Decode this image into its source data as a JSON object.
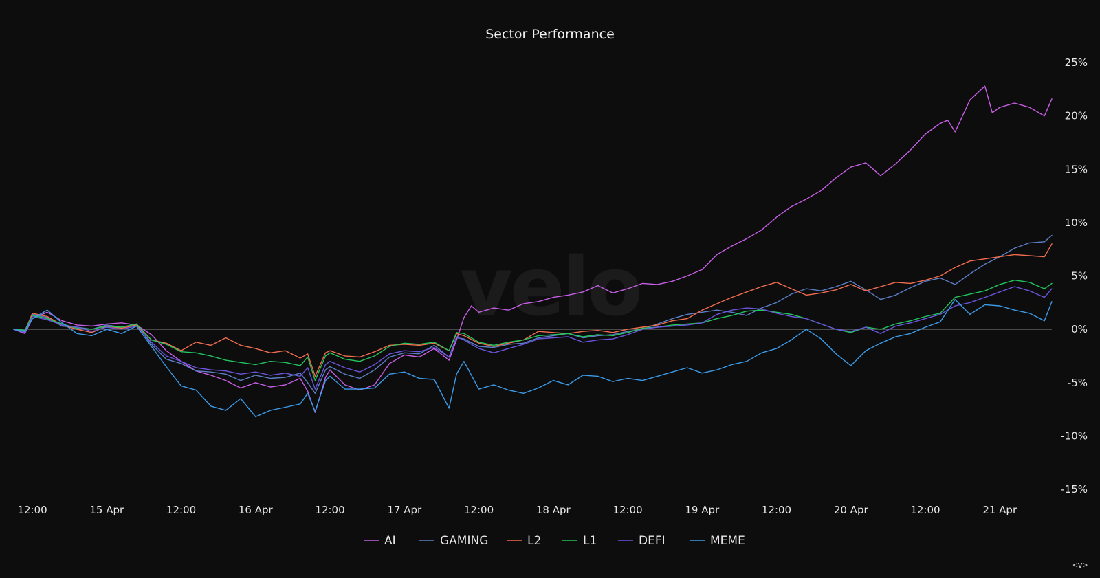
{
  "chart_data": {
    "type": "line",
    "title": "Sector Performance",
    "watermark": "velo",
    "y_tick_labels": [
      "25%",
      "20%",
      "15%",
      "10%",
      "5%",
      "0%",
      "-5%",
      "-10%",
      "-15%"
    ],
    "y_ticks": [
      25,
      20,
      15,
      10,
      5,
      0,
      -5,
      -10,
      -15
    ],
    "ylim": [
      -15,
      25
    ],
    "x_tick_labels": [
      "12:00",
      "15 Apr",
      "12:00",
      "16 Apr",
      "12:00",
      "17 Apr",
      "12:00",
      "18 Apr",
      "12:00",
      "19 Apr",
      "12:00",
      "20 Apr",
      "12:00",
      "21 Apr"
    ],
    "x_ticks": [
      0.5,
      1.0,
      1.5,
      2.0,
      2.5,
      3.0,
      3.5,
      4.0,
      4.5,
      5.0,
      5.5,
      6.0,
      6.5,
      7.0
    ],
    "xlim": [
      0.375,
      7.35
    ],
    "zero_line": true,
    "legend_position": "bottom-center",
    "corner_label": "<v>",
    "series": [
      {
        "name": "AI",
        "color": "#c85fe6",
        "x": [
          0.375,
          0.45,
          0.5,
          0.6,
          0.7,
          0.8,
          0.9,
          1.0,
          1.1,
          1.2,
          1.3,
          1.4,
          1.5,
          1.6,
          1.7,
          1.8,
          1.9,
          2.0,
          2.1,
          2.2,
          2.3,
          2.35,
          2.4,
          2.47,
          2.5,
          2.6,
          2.7,
          2.8,
          2.9,
          3.0,
          3.1,
          3.2,
          3.3,
          3.35,
          3.4,
          3.45,
          3.5,
          3.6,
          3.7,
          3.8,
          3.9,
          4.0,
          4.1,
          4.2,
          4.3,
          4.4,
          4.5,
          4.6,
          4.7,
          4.8,
          4.9,
          5.0,
          5.1,
          5.2,
          5.3,
          5.4,
          5.5,
          5.6,
          5.7,
          5.8,
          5.9,
          6.0,
          6.1,
          6.2,
          6.3,
          6.4,
          6.5,
          6.6,
          6.65,
          6.7,
          6.8,
          6.9,
          6.95,
          7.0,
          7.1,
          7.2,
          7.3,
          7.35
        ],
        "y": [
          0.0,
          -0.4,
          1.0,
          1.6,
          0.8,
          0.4,
          0.3,
          0.5,
          0.6,
          0.4,
          -0.5,
          -2.0,
          -3.0,
          -3.9,
          -4.3,
          -4.8,
          -5.5,
          -5.0,
          -5.4,
          -5.2,
          -4.6,
          -5.8,
          -7.8,
          -4.5,
          -3.8,
          -5.2,
          -5.7,
          -5.2,
          -3.2,
          -2.4,
          -2.6,
          -1.8,
          -2.9,
          -1.0,
          1.1,
          2.2,
          1.6,
          2.0,
          1.8,
          2.4,
          2.6,
          3.0,
          3.2,
          3.5,
          4.1,
          3.4,
          3.8,
          4.3,
          4.2,
          4.5,
          5.0,
          5.6,
          7.0,
          7.8,
          8.5,
          9.3,
          10.5,
          11.5,
          12.2,
          13.0,
          14.2,
          15.2,
          15.6,
          14.4,
          15.5,
          16.8,
          18.3,
          19.3,
          19.6,
          18.5,
          21.5,
          22.8,
          20.3,
          20.8,
          21.2,
          20.8,
          20.0,
          21.6
        ]
      },
      {
        "name": "GAMING",
        "color": "#5b7fc6",
        "x": [
          0.375,
          0.45,
          0.5,
          0.6,
          0.7,
          0.8,
          0.9,
          1.0,
          1.1,
          1.2,
          1.3,
          1.4,
          1.5,
          1.6,
          1.7,
          1.8,
          1.9,
          2.0,
          2.1,
          2.2,
          2.3,
          2.35,
          2.4,
          2.47,
          2.5,
          2.6,
          2.7,
          2.8,
          2.9,
          3.0,
          3.1,
          3.2,
          3.3,
          3.35,
          3.4,
          3.5,
          3.6,
          3.7,
          3.8,
          3.9,
          4.0,
          4.1,
          4.2,
          4.3,
          4.4,
          4.5,
          4.6,
          4.7,
          4.8,
          4.9,
          5.0,
          5.1,
          5.2,
          5.3,
          5.4,
          5.5,
          5.6,
          5.7,
          5.8,
          5.9,
          6.0,
          6.1,
          6.2,
          6.3,
          6.4,
          6.5,
          6.6,
          6.7,
          6.8,
          6.9,
          7.0,
          7.1,
          7.2,
          7.3,
          7.35
        ],
        "y": [
          0.0,
          -0.2,
          1.4,
          1.1,
          0.3,
          0.2,
          0.0,
          0.4,
          0.2,
          0.5,
          -1.4,
          -2.8,
          -3.2,
          -3.9,
          -4.0,
          -4.2,
          -4.8,
          -4.3,
          -4.6,
          -4.5,
          -4.1,
          -5.0,
          -6.0,
          -3.8,
          -3.5,
          -4.2,
          -4.6,
          -3.8,
          -2.6,
          -2.2,
          -2.3,
          -1.5,
          -2.6,
          -0.8,
          -0.9,
          -1.6,
          -1.7,
          -1.4,
          -1.3,
          -0.8,
          -0.6,
          -0.4,
          -0.8,
          -0.6,
          -0.5,
          -0.2,
          0.0,
          0.5,
          1.0,
          1.4,
          1.6,
          1.8,
          1.6,
          1.3,
          2.0,
          2.5,
          3.3,
          3.8,
          3.6,
          4.0,
          4.5,
          3.7,
          2.8,
          3.2,
          3.9,
          4.5,
          4.8,
          4.2,
          5.2,
          6.1,
          6.8,
          7.6,
          8.1,
          8.2,
          8.8
        ]
      },
      {
        "name": "L2",
        "color": "#f26d4f",
        "x": [
          0.375,
          0.45,
          0.5,
          0.6,
          0.7,
          0.8,
          0.9,
          1.0,
          1.1,
          1.2,
          1.3,
          1.4,
          1.5,
          1.6,
          1.7,
          1.8,
          1.9,
          2.0,
          2.1,
          2.2,
          2.3,
          2.35,
          2.4,
          2.47,
          2.5,
          2.6,
          2.7,
          2.8,
          2.9,
          3.0,
          3.1,
          3.2,
          3.3,
          3.35,
          3.4,
          3.5,
          3.6,
          3.7,
          3.8,
          3.9,
          4.0,
          4.1,
          4.2,
          4.3,
          4.4,
          4.5,
          4.6,
          4.7,
          4.8,
          4.9,
          5.0,
          5.1,
          5.2,
          5.3,
          5.4,
          5.5,
          5.6,
          5.7,
          5.8,
          5.9,
          6.0,
          6.1,
          6.2,
          6.3,
          6.4,
          6.5,
          6.6,
          6.7,
          6.8,
          6.9,
          7.0,
          7.1,
          7.2,
          7.3,
          7.35
        ],
        "y": [
          0.0,
          -0.2,
          1.5,
          1.2,
          0.4,
          0.0,
          -0.3,
          0.3,
          0.1,
          0.4,
          -1.0,
          -1.3,
          -2.0,
          -1.2,
          -1.5,
          -0.8,
          -1.5,
          -1.8,
          -2.2,
          -2.0,
          -2.7,
          -2.3,
          -4.4,
          -2.2,
          -2.0,
          -2.5,
          -2.6,
          -2.1,
          -1.5,
          -1.4,
          -1.5,
          -1.3,
          -2.0,
          -0.4,
          -0.6,
          -1.3,
          -1.6,
          -1.3,
          -1.0,
          -0.2,
          -0.3,
          -0.4,
          -0.2,
          -0.1,
          -0.3,
          0.0,
          0.2,
          0.4,
          0.8,
          1.0,
          1.8,
          2.4,
          3.0,
          3.5,
          4.0,
          4.4,
          3.8,
          3.2,
          3.4,
          3.7,
          4.2,
          3.6,
          4.0,
          4.4,
          4.3,
          4.6,
          5.0,
          5.8,
          6.4,
          6.6,
          6.8,
          7.0,
          6.9,
          6.8,
          8.0
        ]
      },
      {
        "name": "L1",
        "color": "#22c55e",
        "x": [
          0.375,
          0.45,
          0.5,
          0.6,
          0.7,
          0.8,
          0.9,
          1.0,
          1.1,
          1.2,
          1.3,
          1.4,
          1.5,
          1.6,
          1.7,
          1.8,
          1.9,
          2.0,
          2.1,
          2.2,
          2.3,
          2.35,
          2.4,
          2.47,
          2.5,
          2.6,
          2.7,
          2.8,
          2.9,
          3.0,
          3.1,
          3.2,
          3.3,
          3.35,
          3.4,
          3.5,
          3.6,
          3.7,
          3.8,
          3.9,
          4.0,
          4.1,
          4.2,
          4.3,
          4.4,
          4.5,
          4.6,
          4.7,
          4.8,
          4.9,
          5.0,
          5.1,
          5.2,
          5.3,
          5.4,
          5.5,
          5.6,
          5.7,
          5.8,
          5.9,
          6.0,
          6.1,
          6.2,
          6.3,
          6.4,
          6.5,
          6.6,
          6.7,
          6.8,
          6.9,
          7.0,
          7.1,
          7.2,
          7.3,
          7.35
        ],
        "y": [
          0.0,
          -0.1,
          1.3,
          1.0,
          0.5,
          0.1,
          0.0,
          0.3,
          0.2,
          0.5,
          -1.0,
          -1.4,
          -2.1,
          -2.2,
          -2.5,
          -2.9,
          -3.1,
          -3.3,
          -3.0,
          -3.1,
          -3.4,
          -2.6,
          -4.8,
          -2.5,
          -2.2,
          -2.8,
          -3.0,
          -2.5,
          -1.6,
          -1.3,
          -1.4,
          -1.2,
          -2.0,
          -0.3,
          -0.4,
          -1.2,
          -1.5,
          -1.2,
          -1.0,
          -0.6,
          -0.5,
          -0.4,
          -0.7,
          -0.5,
          -0.6,
          -0.3,
          0.1,
          0.2,
          0.4,
          0.5,
          0.6,
          1.0,
          1.3,
          1.7,
          1.8,
          1.6,
          1.4,
          1.0,
          0.5,
          0.0,
          -0.3,
          0.2,
          0.0,
          0.5,
          0.8,
          1.2,
          1.5,
          3.0,
          3.3,
          3.6,
          4.2,
          4.6,
          4.4,
          3.8,
          4.3
        ]
      },
      {
        "name": "DEFI",
        "color": "#6a55dd",
        "x": [
          0.375,
          0.45,
          0.5,
          0.6,
          0.7,
          0.8,
          0.9,
          1.0,
          1.1,
          1.2,
          1.3,
          1.4,
          1.5,
          1.6,
          1.7,
          1.8,
          1.9,
          2.0,
          2.1,
          2.2,
          2.3,
          2.35,
          2.4,
          2.47,
          2.5,
          2.6,
          2.7,
          2.8,
          2.9,
          3.0,
          3.1,
          3.2,
          3.3,
          3.35,
          3.4,
          3.5,
          3.6,
          3.7,
          3.8,
          3.9,
          4.0,
          4.1,
          4.2,
          4.3,
          4.4,
          4.5,
          4.6,
          4.7,
          4.8,
          4.9,
          5.0,
          5.1,
          5.2,
          5.3,
          5.4,
          5.5,
          5.6,
          5.7,
          5.8,
          5.9,
          6.0,
          6.1,
          6.2,
          6.3,
          6.4,
          6.5,
          6.6,
          6.7,
          6.8,
          6.9,
          7.0,
          7.1,
          7.2,
          7.3,
          7.35
        ],
        "y": [
          0.0,
          -0.3,
          1.2,
          0.9,
          0.4,
          0.2,
          -0.2,
          0.2,
          0.0,
          0.3,
          -1.2,
          -2.5,
          -3.0,
          -3.6,
          -3.8,
          -3.9,
          -4.2,
          -4.0,
          -4.3,
          -4.1,
          -4.4,
          -3.6,
          -5.6,
          -3.3,
          -3.0,
          -3.6,
          -4.0,
          -3.3,
          -2.3,
          -2.0,
          -2.1,
          -1.7,
          -2.6,
          -0.7,
          -1.0,
          -1.8,
          -2.2,
          -1.8,
          -1.4,
          -0.9,
          -0.8,
          -0.7,
          -1.2,
          -1.0,
          -0.9,
          -0.5,
          0.0,
          0.2,
          0.3,
          0.4,
          0.6,
          1.4,
          1.8,
          2.0,
          1.9,
          1.5,
          1.2,
          1.0,
          0.5,
          0.0,
          -0.2,
          0.2,
          -0.4,
          0.3,
          0.6,
          1.0,
          1.4,
          2.2,
          2.5,
          3.0,
          3.5,
          4.0,
          3.6,
          3.0,
          3.8
        ]
      },
      {
        "name": "MEME",
        "color": "#3b9be8",
        "x": [
          0.375,
          0.45,
          0.5,
          0.6,
          0.7,
          0.8,
          0.9,
          1.0,
          1.1,
          1.2,
          1.3,
          1.4,
          1.5,
          1.6,
          1.7,
          1.8,
          1.9,
          2.0,
          2.1,
          2.2,
          2.3,
          2.35,
          2.4,
          2.47,
          2.5,
          2.6,
          2.7,
          2.8,
          2.9,
          3.0,
          3.1,
          3.2,
          3.3,
          3.35,
          3.4,
          3.5,
          3.6,
          3.7,
          3.8,
          3.9,
          4.0,
          4.1,
          4.2,
          4.3,
          4.4,
          4.5,
          4.6,
          4.7,
          4.8,
          4.9,
          5.0,
          5.1,
          5.2,
          5.3,
          5.4,
          5.5,
          5.6,
          5.7,
          5.8,
          5.9,
          6.0,
          6.1,
          6.2,
          6.3,
          6.4,
          6.5,
          6.6,
          6.7,
          6.8,
          6.9,
          7.0,
          7.1,
          7.2,
          7.3,
          7.35
        ],
        "y": [
          0.0,
          -0.2,
          1.0,
          1.8,
          0.6,
          -0.4,
          -0.6,
          0.0,
          -0.4,
          0.3,
          -1.6,
          -3.5,
          -5.3,
          -5.7,
          -7.2,
          -7.6,
          -6.5,
          -8.2,
          -7.6,
          -7.3,
          -7.0,
          -6.0,
          -7.7,
          -4.8,
          -4.4,
          -5.6,
          -5.6,
          -5.5,
          -4.2,
          -4.0,
          -4.6,
          -4.7,
          -7.4,
          -4.2,
          -3.0,
          -5.6,
          -5.2,
          -5.7,
          -6.0,
          -5.5,
          -4.8,
          -5.2,
          -4.3,
          -4.4,
          -4.9,
          -4.6,
          -4.8,
          -4.4,
          -4.0,
          -3.6,
          -4.1,
          -3.8,
          -3.3,
          -3.0,
          -2.2,
          -1.8,
          -1.0,
          0.0,
          -0.9,
          -2.3,
          -3.4,
          -2.0,
          -1.3,
          -0.7,
          -0.4,
          0.2,
          0.7,
          2.8,
          1.4,
          2.3,
          2.2,
          1.8,
          1.5,
          0.8,
          2.6
        ]
      }
    ]
  }
}
